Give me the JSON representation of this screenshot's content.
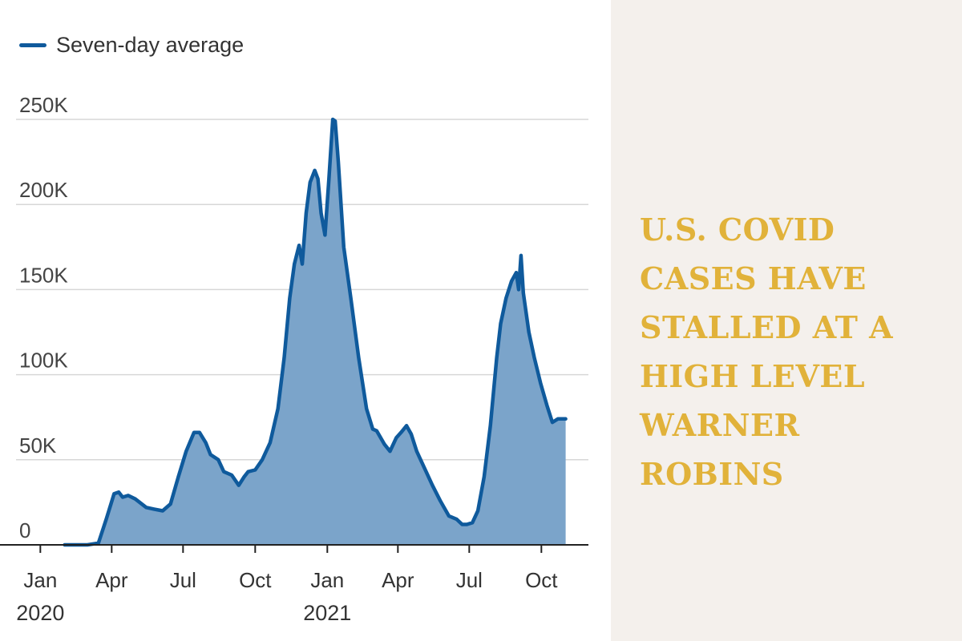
{
  "headline": "U.S. COVID CASES HAVE STALLED AT A HIGH LEVEL WARNER ROBINS",
  "colors": {
    "line": "#0f5a9c",
    "area": "#7ba4ca",
    "grid": "#d7d7d7",
    "axis": "#222222",
    "headline": "#e1b23a",
    "side_background": "#f4f0ec"
  },
  "chart_data": {
    "type": "area",
    "legend": [
      "Seven-day average"
    ],
    "legend_position": "top-left",
    "grid": true,
    "ylim": [
      0,
      250000
    ],
    "y_ticks": [
      {
        "value": 0,
        "label": "0"
      },
      {
        "value": 50000,
        "label": "50K"
      },
      {
        "value": 100000,
        "label": "100K"
      },
      {
        "value": 150000,
        "label": "150K"
      },
      {
        "value": 200000,
        "label": "200K"
      },
      {
        "value": 250000,
        "label": "250K"
      }
    ],
    "xlim": [
      "2019-12-01",
      "2021-11-30"
    ],
    "x_ticks": [
      {
        "date": "2020-01-01",
        "label": "Jan"
      },
      {
        "date": "2020-04-01",
        "label": "Apr"
      },
      {
        "date": "2020-07-01",
        "label": "Jul"
      },
      {
        "date": "2020-10-01",
        "label": "Oct"
      },
      {
        "date": "2021-01-01",
        "label": "Jan"
      },
      {
        "date": "2021-04-01",
        "label": "Apr"
      },
      {
        "date": "2021-07-01",
        "label": "Jul"
      },
      {
        "date": "2021-10-01",
        "label": "Oct"
      }
    ],
    "year_labels": [
      {
        "date": "2020-01-01",
        "label": "2020"
      },
      {
        "date": "2021-01-01",
        "label": "2021"
      }
    ],
    "series": [
      {
        "name": "Seven-day average",
        "points": [
          [
            "2020-02-01",
            0
          ],
          [
            "2020-03-01",
            0
          ],
          [
            "2020-03-15",
            1000
          ],
          [
            "2020-03-25",
            15000
          ],
          [
            "2020-04-04",
            30000
          ],
          [
            "2020-04-10",
            31000
          ],
          [
            "2020-04-15",
            28000
          ],
          [
            "2020-04-22",
            29000
          ],
          [
            "2020-05-01",
            27000
          ],
          [
            "2020-05-15",
            22000
          ],
          [
            "2020-05-25",
            21000
          ],
          [
            "2020-06-05",
            20000
          ],
          [
            "2020-06-15",
            24000
          ],
          [
            "2020-06-25",
            40000
          ],
          [
            "2020-07-05",
            55000
          ],
          [
            "2020-07-15",
            66000
          ],
          [
            "2020-07-22",
            66000
          ],
          [
            "2020-07-30",
            60000
          ],
          [
            "2020-08-05",
            53000
          ],
          [
            "2020-08-15",
            50000
          ],
          [
            "2020-08-22",
            43000
          ],
          [
            "2020-09-01",
            41000
          ],
          [
            "2020-09-10",
            35000
          ],
          [
            "2020-09-17",
            40000
          ],
          [
            "2020-09-22",
            43000
          ],
          [
            "2020-10-01",
            44000
          ],
          [
            "2020-10-10",
            50000
          ],
          [
            "2020-10-20",
            60000
          ],
          [
            "2020-10-30",
            80000
          ],
          [
            "2020-11-07",
            110000
          ],
          [
            "2020-11-14",
            145000
          ],
          [
            "2020-11-20",
            165000
          ],
          [
            "2020-11-26",
            176000
          ],
          [
            "2020-11-30",
            165000
          ],
          [
            "2020-12-05",
            195000
          ],
          [
            "2020-12-10",
            213000
          ],
          [
            "2020-12-16",
            220000
          ],
          [
            "2020-12-20",
            215000
          ],
          [
            "2020-12-24",
            195000
          ],
          [
            "2020-12-29",
            182000
          ],
          [
            "2021-01-03",
            215000
          ],
          [
            "2021-01-08",
            250000
          ],
          [
            "2021-01-11",
            249000
          ],
          [
            "2021-01-15",
            225000
          ],
          [
            "2021-01-22",
            175000
          ],
          [
            "2021-01-31",
            145000
          ],
          [
            "2021-02-10",
            110000
          ],
          [
            "2021-02-20",
            80000
          ],
          [
            "2021-02-28",
            68000
          ],
          [
            "2021-03-05",
            67000
          ],
          [
            "2021-03-15",
            59000
          ],
          [
            "2021-03-22",
            55000
          ],
          [
            "2021-03-30",
            63000
          ],
          [
            "2021-04-05",
            66000
          ],
          [
            "2021-04-12",
            70000
          ],
          [
            "2021-04-18",
            65000
          ],
          [
            "2021-04-25",
            55000
          ],
          [
            "2021-05-05",
            45000
          ],
          [
            "2021-05-15",
            35000
          ],
          [
            "2021-05-25",
            26000
          ],
          [
            "2021-06-05",
            17000
          ],
          [
            "2021-06-15",
            15000
          ],
          [
            "2021-06-22",
            12000
          ],
          [
            "2021-06-28",
            12000
          ],
          [
            "2021-07-05",
            13000
          ],
          [
            "2021-07-12",
            20000
          ],
          [
            "2021-07-20",
            40000
          ],
          [
            "2021-07-28",
            70000
          ],
          [
            "2021-08-05",
            110000
          ],
          [
            "2021-08-10",
            130000
          ],
          [
            "2021-08-17",
            145000
          ],
          [
            "2021-08-24",
            155000
          ],
          [
            "2021-08-30",
            160000
          ],
          [
            "2021-09-02",
            150000
          ],
          [
            "2021-09-05",
            170000
          ],
          [
            "2021-09-08",
            148000
          ],
          [
            "2021-09-15",
            125000
          ],
          [
            "2021-09-22",
            110000
          ],
          [
            "2021-09-30",
            95000
          ],
          [
            "2021-10-08",
            82000
          ],
          [
            "2021-10-15",
            72000
          ],
          [
            "2021-10-22",
            74000
          ],
          [
            "2021-11-01",
            74000
          ]
        ]
      }
    ]
  }
}
